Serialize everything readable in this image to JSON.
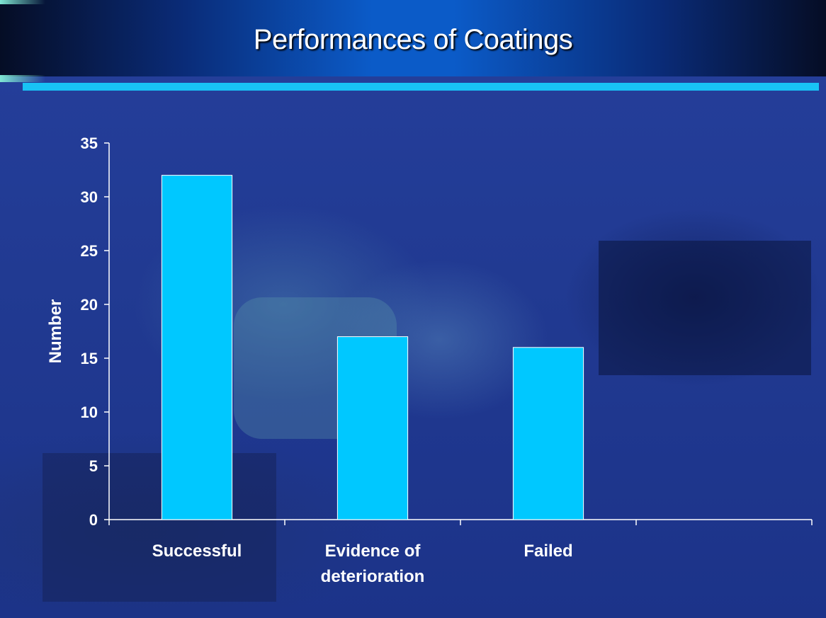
{
  "slide": {
    "title": "Performances of Coatings",
    "colors": {
      "bar": "#00c8ff",
      "accent": "#18c3f5",
      "axis": "#ffffff"
    }
  },
  "chart_data": {
    "type": "bar",
    "categories": [
      "Successful",
      "Evidence of deterioration",
      "Failed",
      ""
    ],
    "category_lines": [
      [
        "Successful"
      ],
      [
        "Evidence of",
        "deterioration"
      ],
      [
        "Failed"
      ],
      [
        ""
      ]
    ],
    "values": [
      32,
      17,
      16,
      null
    ],
    "ylabel": "Number",
    "xlabel": "",
    "ylim": [
      0,
      35
    ],
    "yticks": [
      0,
      5,
      10,
      15,
      20,
      25,
      30,
      35
    ],
    "grid": false,
    "legend": "none"
  }
}
